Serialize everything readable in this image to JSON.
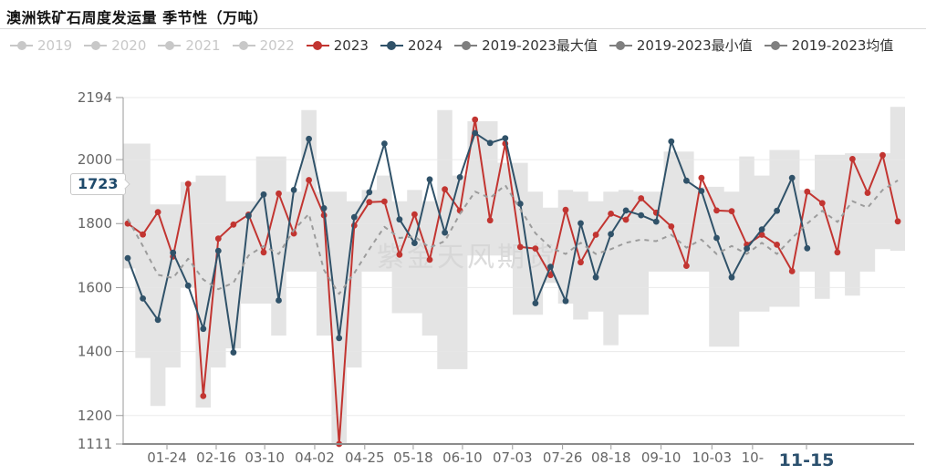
{
  "title": "澳洲铁矿石周度发运量 季节性（万吨）",
  "watermark": "紫金天风期货",
  "axis_marker": {
    "value": "1723"
  },
  "legend": {
    "items": [
      {
        "label": "2019",
        "color": "#c8c8c8",
        "text": "#c8c8c8",
        "active": false
      },
      {
        "label": "2020",
        "color": "#c8c8c8",
        "text": "#c8c8c8",
        "active": false
      },
      {
        "label": "2021",
        "color": "#c8c8c8",
        "text": "#c8c8c8",
        "active": false
      },
      {
        "label": "2022",
        "color": "#c8c8c8",
        "text": "#c8c8c8",
        "active": false
      },
      {
        "label": "2023",
        "color": "#c23531",
        "text": "#333333",
        "active": true
      },
      {
        "label": "2024",
        "color": "#305269",
        "text": "#333333",
        "active": true
      },
      {
        "label": "2019-2023最大值",
        "color": "#7f7f7f",
        "text": "#333333",
        "active": true
      },
      {
        "label": "2019-2023最小值",
        "color": "#7f7f7f",
        "text": "#333333",
        "active": true
      },
      {
        "label": "2019-2023均值",
        "color": "#7f7f7f",
        "text": "#333333",
        "active": true
      }
    ]
  },
  "chart_data": {
    "type": "line",
    "title": "澳洲铁矿石周度发运量 季节性（万吨）",
    "unit": "万吨",
    "grid": true,
    "legend_position": "top",
    "ylim": [
      1111,
      2194
    ],
    "yticks": [
      2194,
      2000,
      1800,
      1600,
      1400,
      1200,
      1111
    ],
    "x_ticks": [
      {
        "label": "01-24",
        "pos": 0.056
      },
      {
        "label": "02-16",
        "pos": 0.119
      },
      {
        "label": "03-10",
        "pos": 0.181
      },
      {
        "label": "04-02",
        "pos": 0.245
      },
      {
        "label": "04-25",
        "pos": 0.309
      },
      {
        "label": "05-18",
        "pos": 0.371
      },
      {
        "label": "06-10",
        "pos": 0.434
      },
      {
        "label": "07-03",
        "pos": 0.498
      },
      {
        "label": "07-26",
        "pos": 0.562
      },
      {
        "label": "08-18",
        "pos": 0.624
      },
      {
        "label": "09-10",
        "pos": 0.688
      },
      {
        "label": "10-03",
        "pos": 0.753
      },
      {
        "label": "10-",
        "pos": 0.805
      },
      {
        "label": "11-15",
        "pos": 0.874,
        "highlight": true
      }
    ],
    "series": [
      {
        "name": "2023",
        "color": "#c23531",
        "style": "solid",
        "markers": true,
        "values": [
          1800,
          1766,
          1836,
          1697,
          1924,
          1261,
          1753,
          1797,
          1828,
          1710,
          1894,
          1769,
          1936,
          1826,
          1111,
          1794,
          1867,
          1869,
          1703,
          1829,
          1687,
          1907,
          1841,
          2125,
          1810,
          2050,
          1727,
          1722,
          1639,
          1843,
          1679,
          1765,
          1831,
          1812,
          1879,
          1834,
          1791,
          1668,
          1943,
          1841,
          1839,
          1734,
          1765,
          1734,
          1651,
          1900,
          1864,
          1710,
          2002,
          1896,
          2014,
          1807
        ]
      },
      {
        "name": "2024",
        "color": "#305269",
        "style": "solid",
        "markers": true,
        "end_value_label": "1723",
        "end_x_label": "11-15",
        "values": [
          1692,
          1566,
          1499,
          1709,
          1606,
          1471,
          1715,
          1397,
          1824,
          1891,
          1560,
          1905,
          2065,
          1848,
          1442,
          1820,
          1898,
          2050,
          1813,
          1739,
          1938,
          1772,
          1945,
          2083,
          2052,
          2067,
          1862,
          1551,
          1665,
          1558,
          1801,
          1632,
          1767,
          1841,
          1826,
          1806,
          2057,
          1934,
          1902,
          1755,
          1632,
          1722,
          1782,
          1840,
          1943,
          1723
        ]
      },
      {
        "name": "2019-2023均值",
        "color": "#9c9c9c",
        "style": "dashed",
        "markers": false,
        "values": [
          1815,
          1730,
          1640,
          1630,
          1690,
          1625,
          1595,
          1615,
          1700,
          1730,
          1705,
          1780,
          1830,
          1655,
          1580,
          1645,
          1720,
          1790,
          1755,
          1760,
          1725,
          1745,
          1830,
          1900,
          1880,
          1920,
          1845,
          1770,
          1725,
          1705,
          1740,
          1705,
          1720,
          1740,
          1750,
          1745,
          1765,
          1725,
          1750,
          1705,
          1730,
          1705,
          1740,
          1705,
          1755,
          1800,
          1840,
          1805,
          1870,
          1850,
          1905,
          1935
        ]
      }
    ],
    "band": {
      "name": "2019-2023最大值/最小值区间",
      "color": "#e4e4e4",
      "max": [
        2050,
        2050,
        1860,
        1860,
        1930,
        1950,
        1950,
        1870,
        1870,
        2010,
        2010,
        1900,
        2155,
        1900,
        1900,
        1870,
        1905,
        1950,
        1870,
        1905,
        1870,
        2155,
        1950,
        2120,
        2120,
        1990,
        1990,
        1900,
        1850,
        1905,
        1900,
        1870,
        1900,
        1905,
        1900,
        1900,
        2025,
        2025,
        1915,
        1915,
        1900,
        2010,
        1950,
        2030,
        2030,
        1905,
        2015,
        2015,
        2020,
        2020,
        2020,
        2165
      ],
      "min": [
        1660,
        1380,
        1230,
        1350,
        1600,
        1225,
        1350,
        1410,
        1550,
        1550,
        1450,
        1650,
        1650,
        1450,
        1111,
        1350,
        1650,
        1650,
        1520,
        1520,
        1450,
        1345,
        1345,
        1700,
        1700,
        1700,
        1515,
        1515,
        1615,
        1550,
        1500,
        1525,
        1420,
        1515,
        1515,
        1650,
        1650,
        1650,
        1650,
        1415,
        1415,
        1525,
        1525,
        1540,
        1540,
        1650,
        1565,
        1650,
        1575,
        1650,
        1720,
        1715
      ]
    }
  }
}
